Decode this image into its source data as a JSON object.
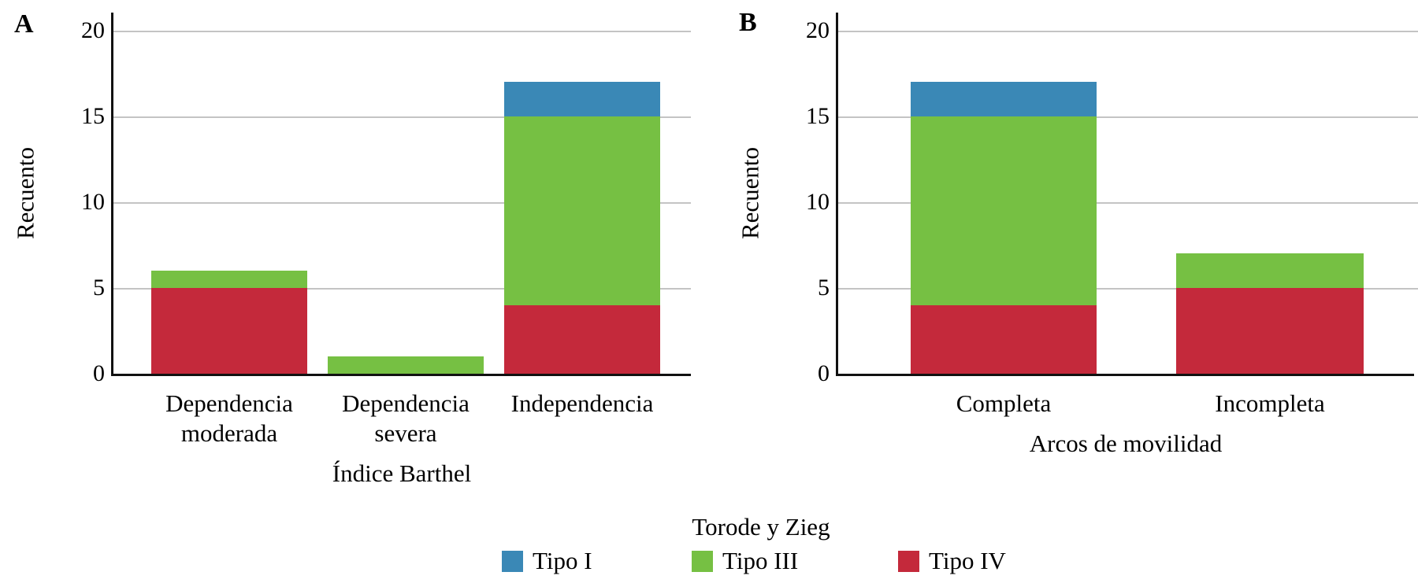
{
  "figure_title": "",
  "panel_letters": [
    "A",
    "B"
  ],
  "colors": {
    "tipo_i_blue": "#3a88b6",
    "tipo_iii_green": "#76c043",
    "tipo_iv_red": "#c4293b",
    "gridline": "#c4c4c4",
    "axis": "#111111"
  },
  "legend": {
    "title": "Torode y Zieg",
    "items": [
      {
        "label": "Tipo I",
        "color": "#3a88b6"
      },
      {
        "label": "Tipo III",
        "color": "#76c043"
      },
      {
        "label": "Tipo IV",
        "color": "#c4293b"
      }
    ]
  },
  "chart_data": [
    {
      "type": "bar",
      "stacked": true,
      "panel": "A",
      "xlabel": "Índice Barthel",
      "ylabel": "Recuento",
      "ylim": [
        0,
        20
      ],
      "yticks": [
        0,
        5,
        10,
        15,
        20
      ],
      "grid": "horizontal",
      "legend_position": "bottom-shared",
      "categories": [
        "Dependencia moderada",
        "Dependencia severa",
        "Independencia"
      ],
      "category_lines": [
        [
          "Dependencia",
          "moderada"
        ],
        [
          "Dependencia",
          "severa"
        ],
        [
          "Independencia"
        ]
      ],
      "stack_order_bottom_to_top": [
        "Tipo IV",
        "Tipo III",
        "Tipo I"
      ],
      "series": [
        {
          "name": "Tipo I",
          "color": "#3a88b6",
          "values": [
            0,
            0,
            2
          ]
        },
        {
          "name": "Tipo III",
          "color": "#76c043",
          "values": [
            1,
            1,
            11
          ]
        },
        {
          "name": "Tipo IV",
          "color": "#c4293b",
          "values": [
            5,
            0,
            4
          ]
        }
      ],
      "totals": [
        6,
        1,
        17
      ]
    },
    {
      "type": "bar",
      "stacked": true,
      "panel": "B",
      "xlabel": "Arcos de movilidad",
      "ylabel": "Recuento",
      "ylim": [
        0,
        20
      ],
      "yticks": [
        0,
        5,
        10,
        15,
        20
      ],
      "grid": "horizontal",
      "legend_position": "bottom-shared",
      "categories": [
        "Completa",
        "Incompleta"
      ],
      "category_lines": [
        [
          "Completa"
        ],
        [
          "Incompleta"
        ]
      ],
      "stack_order_bottom_to_top": [
        "Tipo IV",
        "Tipo III",
        "Tipo I"
      ],
      "series": [
        {
          "name": "Tipo I",
          "color": "#3a88b6",
          "values": [
            2,
            0
          ]
        },
        {
          "name": "Tipo III",
          "color": "#76c043",
          "values": [
            11,
            2
          ]
        },
        {
          "name": "Tipo IV",
          "color": "#c4293b",
          "values": [
            4,
            5
          ]
        }
      ],
      "totals": [
        17,
        7
      ]
    }
  ]
}
